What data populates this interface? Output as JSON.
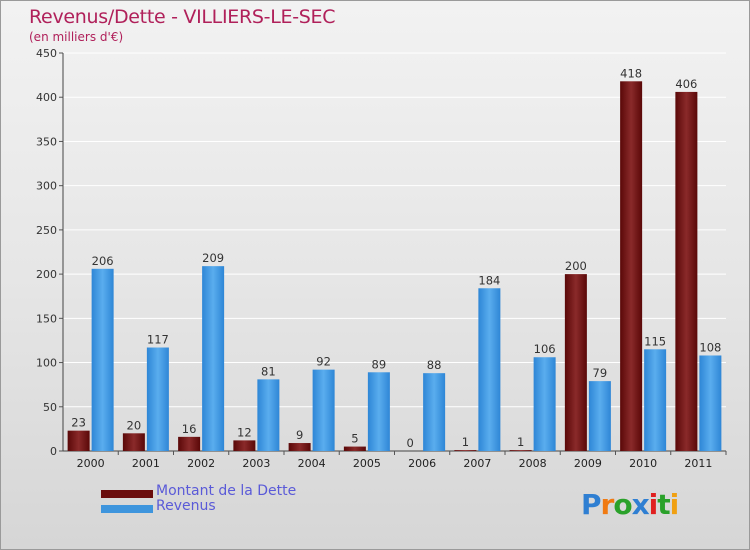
{
  "title": "Revenus/Dette - VILLIERS-LE-SEC",
  "subtitle": "(en milliers d'€)",
  "chart_data": {
    "type": "bar",
    "categories": [
      "2000",
      "2001",
      "2002",
      "2003",
      "2004",
      "2005",
      "2006",
      "2007",
      "2008",
      "2009",
      "2010",
      "2011"
    ],
    "series": [
      {
        "name": "Montant de la Dette",
        "color": "#6b0d0d",
        "values": [
          23,
          20,
          16,
          12,
          9,
          5,
          0,
          1,
          1,
          200,
          418,
          406
        ]
      },
      {
        "name": "Revenus",
        "color": "#3e95dd",
        "values": [
          206,
          117,
          209,
          81,
          92,
          89,
          88,
          184,
          106,
          79,
          115,
          108
        ]
      }
    ],
    "ylim": [
      0,
      450
    ],
    "yticks": [
      0,
      50,
      100,
      150,
      200,
      250,
      300,
      350,
      400,
      450
    ],
    "grid": true,
    "legend_position": "bottom-left"
  },
  "legend": {
    "dette_label": "Montant de la Dette",
    "revenus_label": "Revenus"
  },
  "logo": {
    "text": "Proxiti",
    "letter_colors": [
      "#2f7fd2",
      "#f07a12",
      "#2aa12a",
      "#2f7fd2",
      "#e02020",
      "#2aa12a",
      "#f0a012"
    ]
  }
}
